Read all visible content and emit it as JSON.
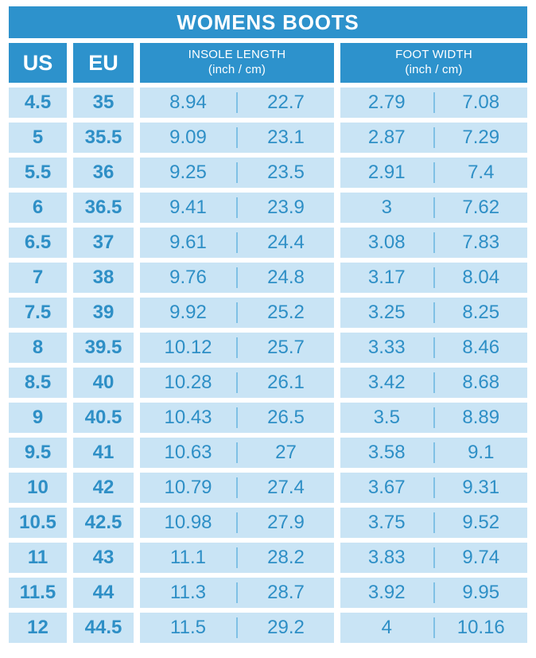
{
  "title": "WOMENS BOOTS",
  "columns": {
    "us": "US",
    "eu": "EU",
    "insole": {
      "label": "INSOLE LENGTH",
      "sub": "(inch / cm)"
    },
    "foot": {
      "label": "FOOT WIDTH",
      "sub": "(inch / cm)"
    }
  },
  "colors": {
    "header_blue": "#2d92cc",
    "cell_background": "#c9e4f5",
    "cell_text": "#2e8fc6",
    "inner_divider": "#7fc0e5",
    "page_background": "#ffffff",
    "header_text": "#ffffff"
  },
  "chart_data": {
    "type": "table",
    "title": "WOMENS BOOTS",
    "columns": [
      "US",
      "EU",
      "INSOLE LENGTH (inch)",
      "INSOLE LENGTH (cm)",
      "FOOT WIDTH (inch)",
      "FOOT WIDTH (cm)"
    ],
    "rows": [
      [
        "4.5",
        "35",
        "8.94",
        "22.7",
        "2.79",
        "7.08"
      ],
      [
        "5",
        "35.5",
        "9.09",
        "23.1",
        "2.87",
        "7.29"
      ],
      [
        "5.5",
        "36",
        "9.25",
        "23.5",
        "2.91",
        "7.4"
      ],
      [
        "6",
        "36.5",
        "9.41",
        "23.9",
        "3",
        "7.62"
      ],
      [
        "6.5",
        "37",
        "9.61",
        "24.4",
        "3.08",
        "7.83"
      ],
      [
        "7",
        "38",
        "9.76",
        "24.8",
        "3.17",
        "8.04"
      ],
      [
        "7.5",
        "39",
        "9.92",
        "25.2",
        "3.25",
        "8.25"
      ],
      [
        "8",
        "39.5",
        "10.12",
        "25.7",
        "3.33",
        "8.46"
      ],
      [
        "8.5",
        "40",
        "10.28",
        "26.1",
        "3.42",
        "8.68"
      ],
      [
        "9",
        "40.5",
        "10.43",
        "26.5",
        "3.5",
        "8.89"
      ],
      [
        "9.5",
        "41",
        "10.63",
        "27",
        "3.58",
        "9.1"
      ],
      [
        "10",
        "42",
        "10.79",
        "27.4",
        "3.67",
        "9.31"
      ],
      [
        "10.5",
        "42.5",
        "10.98",
        "27.9",
        "3.75",
        "9.52"
      ],
      [
        "11",
        "43",
        "11.1",
        "28.2",
        "3.83",
        "9.74"
      ],
      [
        "11.5",
        "44",
        "11.3",
        "28.7",
        "3.92",
        "9.95"
      ],
      [
        "12",
        "44.5",
        "11.5",
        "29.2",
        "4",
        "10.16"
      ]
    ]
  }
}
